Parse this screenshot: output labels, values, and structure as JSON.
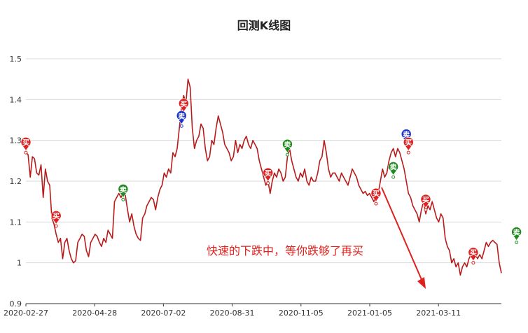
{
  "chart_data": {
    "type": "line",
    "title": "回测K线图",
    "xlabel": "",
    "ylabel": "",
    "ylim": [
      0.9,
      1.5
    ],
    "y_ticks": [
      "0.9",
      "1",
      "1.1",
      "1.2",
      "1.3",
      "1.4",
      "1.5"
    ],
    "x_ticks": [
      "2020-02-27",
      "2020-04-28",
      "2020-07-02",
      "2020-08-31",
      "2020-11-05",
      "2021-01-05",
      "2021-03-11"
    ],
    "grid": true,
    "line_color": "#b71c1c",
    "series": [
      {
        "values": [
          1.27,
          1.265,
          1.21,
          1.26,
          1.255,
          1.22,
          1.215,
          1.24,
          1.16,
          1.23,
          1.2,
          1.19,
          1.11,
          1.095,
          1.07,
          1.05,
          1.06,
          1.01,
          1.05,
          1.06,
          1.03,
          1.01,
          1.0,
          1.005,
          1.05,
          1.06,
          1.07,
          1.065,
          1.03,
          1.015,
          1.05,
          1.06,
          1.07,
          1.065,
          1.05,
          1.04,
          1.06,
          1.05,
          1.08,
          1.07,
          1.06,
          1.15,
          1.16,
          1.17,
          1.16,
          1.175,
          1.165,
          1.13,
          1.1,
          1.12,
          1.09,
          1.07,
          1.06,
          1.055,
          1.11,
          1.12,
          1.14,
          1.15,
          1.16,
          1.155,
          1.13,
          1.16,
          1.18,
          1.19,
          1.22,
          1.21,
          1.23,
          1.22,
          1.27,
          1.26,
          1.28,
          1.33,
          1.38,
          1.41,
          1.39,
          1.45,
          1.43,
          1.33,
          1.28,
          1.3,
          1.31,
          1.34,
          1.33,
          1.28,
          1.25,
          1.26,
          1.3,
          1.29,
          1.33,
          1.36,
          1.34,
          1.32,
          1.29,
          1.28,
          1.27,
          1.25,
          1.26,
          1.3,
          1.27,
          1.29,
          1.28,
          1.3,
          1.31,
          1.29,
          1.28,
          1.3,
          1.29,
          1.28,
          1.25,
          1.23,
          1.21,
          1.19,
          1.2,
          1.17,
          1.2,
          1.22,
          1.21,
          1.23,
          1.22,
          1.2,
          1.21,
          1.26,
          1.28,
          1.25,
          1.23,
          1.21,
          1.2,
          1.22,
          1.21,
          1.23,
          1.2,
          1.19,
          1.21,
          1.2,
          1.2,
          1.22,
          1.25,
          1.26,
          1.3,
          1.27,
          1.23,
          1.21,
          1.22,
          1.22,
          1.21,
          1.2,
          1.22,
          1.21,
          1.2,
          1.19,
          1.21,
          1.23,
          1.22,
          1.21,
          1.19,
          1.18,
          1.17,
          1.175,
          1.165,
          1.17,
          1.16,
          1.15,
          1.165,
          1.17,
          1.2,
          1.23,
          1.21,
          1.22,
          1.25,
          1.27,
          1.28,
          1.26,
          1.28,
          1.27,
          1.25,
          1.23,
          1.2,
          1.17,
          1.16,
          1.14,
          1.13,
          1.12,
          1.1,
          1.13,
          1.15,
          1.12,
          1.14,
          1.13,
          1.15,
          1.13,
          1.11,
          1.1,
          1.12,
          1.11,
          1.06,
          1.04,
          1.03,
          1.0,
          1.01,
          0.99,
          1.0,
          0.97,
          0.99,
          1.0,
          0.99,
          1.01,
          1.02,
          1.03,
          1.02,
          1.01,
          1.02,
          1.01,
          1.03,
          1.05,
          1.04,
          1.05,
          1.055,
          1.05,
          1.045,
          1.0,
          0.975
        ]
      }
    ],
    "trade_markers": [
      {
        "label": "买",
        "color": "#e02020",
        "i": 0,
        "v": 1.27
      },
      {
        "label": "买",
        "color": "#e02020",
        "i": 14,
        "v": 1.09
      },
      {
        "label": "卖",
        "color": "#1f8a1f",
        "i": 45,
        "v": 1.155
      },
      {
        "label": "买",
        "color": "#e02020",
        "i": 73,
        "v": 1.365
      },
      {
        "label": "卖",
        "color": "#1a33cc",
        "i": 72,
        "v": 1.335
      },
      {
        "label": "买",
        "color": "#e02020",
        "i": 112,
        "v": 1.195
      },
      {
        "label": "卖",
        "color": "#1f8a1f",
        "i": 121,
        "v": 1.265
      },
      {
        "label": "买",
        "color": "#e02020",
        "i": 162,
        "v": 1.145
      },
      {
        "label": "卖",
        "color": "#1f8a1f",
        "i": 170,
        "v": 1.21
      },
      {
        "label": "卖",
        "color": "#1a33cc",
        "i": 176,
        "v": 1.29
      },
      {
        "label": "买",
        "color": "#e02020",
        "i": 177,
        "v": 1.27
      },
      {
        "label": "买",
        "color": "#e02020",
        "i": 185,
        "v": 1.13
      },
      {
        "label": "买",
        "color": "#e02020",
        "i": 207,
        "v": 1.0
      },
      {
        "label": "卖",
        "color": "#1f8a1f",
        "i": 227,
        "v": 1.05
      }
    ],
    "annotations": [
      {
        "text": "快速的下跌中，等你跌够了再买"
      }
    ]
  }
}
